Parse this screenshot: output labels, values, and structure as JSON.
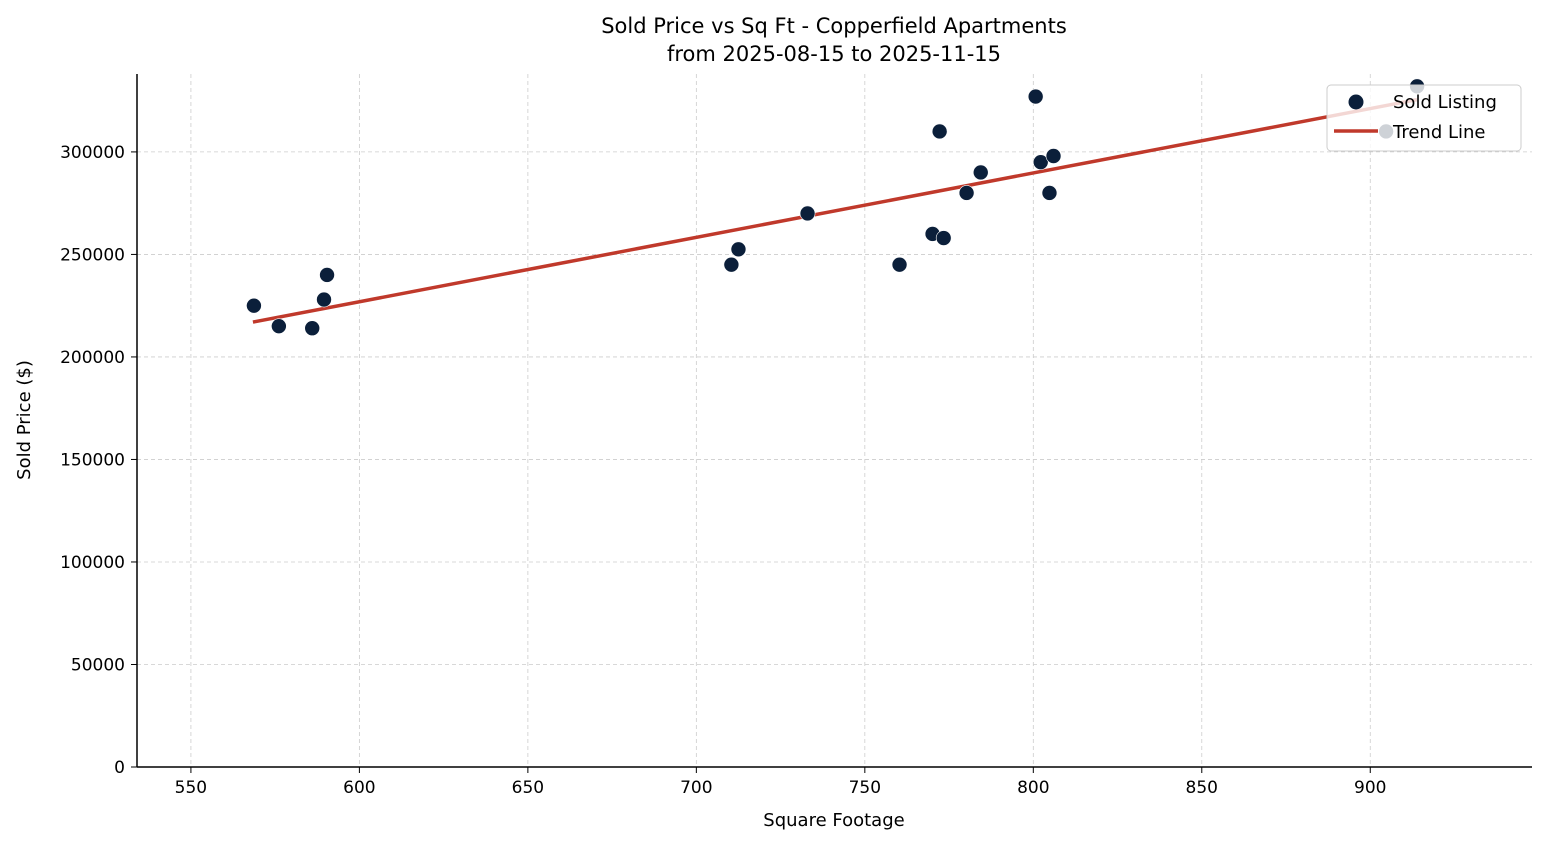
{
  "chart_data": {
    "type": "scatter",
    "title": "Sold Price vs Sq Ft - Copperfield Apartments",
    "subtitle": "from 2025-08-15 to 2025-11-15",
    "xlabel": "Square Footage",
    "ylabel": "Sold Price ($)",
    "xlim": [
      534,
      948
    ],
    "ylim": [
      0,
      338000
    ],
    "xticks": [
      550,
      600,
      650,
      700,
      750,
      800,
      850,
      900
    ],
    "yticks": [
      0,
      50000,
      100000,
      150000,
      200000,
      250000,
      300000
    ],
    "grid": true,
    "legend_position": "top-right",
    "series": [
      {
        "name": "Sold Listing",
        "type": "scatter",
        "color": "#0b1f3a",
        "points": [
          [
            568.7,
            225000
          ],
          [
            576.1,
            215000
          ],
          [
            586.0,
            214000
          ],
          [
            589.5,
            228000
          ],
          [
            590.4,
            240000
          ],
          [
            710.4,
            245000
          ],
          [
            712.5,
            252500
          ],
          [
            733.0,
            270000
          ],
          [
            760.3,
            245000
          ],
          [
            770.1,
            260000
          ],
          [
            773.4,
            258000
          ],
          [
            772.2,
            310000
          ],
          [
            780.2,
            280000
          ],
          [
            784.4,
            290000
          ],
          [
            800.7,
            327000
          ],
          [
            802.2,
            295000
          ],
          [
            806.0,
            298000
          ],
          [
            804.8,
            280000
          ],
          [
            904.7,
            310000
          ],
          [
            913.9,
            332000
          ]
        ]
      },
      {
        "name": "Trend Line",
        "type": "line",
        "color": "#c0392b",
        "points": [
          [
            568.4,
            217000
          ],
          [
            913.9,
            325500
          ]
        ]
      }
    ]
  }
}
